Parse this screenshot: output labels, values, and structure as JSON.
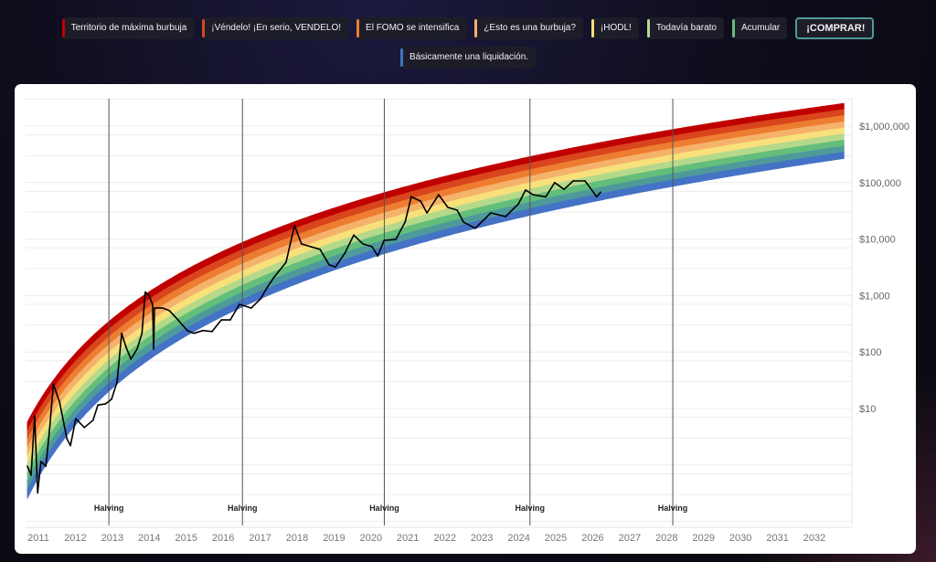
{
  "legend": {
    "items": [
      {
        "label": "Territorio de máxima burbuja",
        "color": "#c00000"
      },
      {
        "label": "¡Véndelo! ¡En serio, VENDELO!",
        "color": "#d9451c"
      },
      {
        "label": "El FOMO se intensifica",
        "color": "#ed7d31"
      },
      {
        "label": "¿Esto es una burbuja?",
        "color": "#f5b26b"
      },
      {
        "label": "¡HODL!",
        "color": "#f8e07a"
      },
      {
        "label": "Todavía barato",
        "color": "#b5d98b"
      },
      {
        "label": "Acumular",
        "color": "#63be7b"
      },
      {
        "label": "¡COMPRAR!",
        "color": "#4e9a9a",
        "active": true
      },
      {
        "label": "Básicamente una liquidación.",
        "color": "#4472c4"
      }
    ]
  },
  "chart_data": {
    "type": "line",
    "title": "",
    "xlabel": "",
    "ylabel": "",
    "y_scale": "log",
    "grid": true,
    "legend_placement": "top",
    "xlim": [
      "2010-09",
      "2032-10"
    ],
    "ylim": [
      0.08,
      2500000
    ],
    "x_ticks": [
      "2011",
      "2012",
      "2013",
      "2014",
      "2015",
      "2016",
      "2017",
      "2018",
      "2019",
      "2020",
      "2021",
      "2022",
      "2023",
      "2024",
      "2025",
      "2026",
      "2027",
      "2028",
      "2029",
      "2030",
      "2031",
      "2032"
    ],
    "y_ticks": [
      {
        "value": 10,
        "label": "$10"
      },
      {
        "value": 100,
        "label": "$100"
      },
      {
        "value": 1000,
        "label": "$1,000"
      },
      {
        "value": 10000,
        "label": "$10,000"
      },
      {
        "value": 100000,
        "label": "$100,000"
      },
      {
        "value": 1000000,
        "label": "$1,000,000"
      }
    ],
    "halvings": [
      {
        "date": "2012-11-28",
        "label": "Halving"
      },
      {
        "date": "2016-07-09",
        "label": "Halving"
      },
      {
        "date": "2020-05-11",
        "label": "Halving"
      },
      {
        "date": "2024-04-20",
        "label": "Halving"
      },
      {
        "date": "2028-03-01",
        "label": "Halving"
      }
    ],
    "rainbow": {
      "bands_top_to_bottom": [
        "#c00000",
        "#d9451c",
        "#ed7d31",
        "#f5b26b",
        "#f8e07a",
        "#b5d98b",
        "#63be7b",
        "#4e9a9a",
        "#4472c4"
      ],
      "model": "log10(price) = a + b * ln(days since 2009-01-03)",
      "upper": {
        "a": -12.97,
        "b": 2.136
      },
      "lower": {
        "a": -15.25,
        "b": 2.28
      },
      "range": [
        "2010-09-13",
        "2032-10-20"
      ]
    },
    "series": [
      {
        "color": "#000000",
        "points": [
          [
            "2010-09-13",
            0.95
          ],
          [
            "2010-10-20",
            0.66
          ],
          [
            "2010-11-25",
            7.4
          ],
          [
            "2010-12-24",
            0.32
          ],
          [
            "2011-01-26",
            1.15
          ],
          [
            "2011-03-14",
            0.95
          ],
          [
            "2011-04-20",
            4.2
          ],
          [
            "2011-05-27",
            27
          ],
          [
            "2011-07-28",
            13
          ],
          [
            "2011-10-09",
            2.9
          ],
          [
            "2011-11-14",
            2.2
          ],
          [
            "2012-01-05",
            6.6
          ],
          [
            "2012-03-29",
            4.6
          ],
          [
            "2012-06-24",
            6.2
          ],
          [
            "2012-08-11",
            11.5
          ],
          [
            "2012-10-23",
            12
          ],
          [
            "2012-12-24",
            14.5
          ],
          [
            "2013-02-18",
            29.5
          ],
          [
            "2013-04-02",
            214
          ],
          [
            "2013-05-16",
            121
          ],
          [
            "2013-07-02",
            75
          ],
          [
            "2013-09-03",
            113
          ],
          [
            "2013-10-20",
            214
          ],
          [
            "2013-11-22",
            1150
          ],
          [
            "2013-12-28",
            1020
          ],
          [
            "2014-02-03",
            700
          ],
          [
            "2014-02-14",
            113
          ],
          [
            "2014-02-22",
            600
          ],
          [
            "2014-05-12",
            600
          ],
          [
            "2014-07-17",
            540
          ],
          [
            "2014-10-12",
            370
          ],
          [
            "2015-01-12",
            240
          ],
          [
            "2015-03-15",
            214
          ],
          [
            "2015-06-14",
            240
          ],
          [
            "2015-09-13",
            230
          ],
          [
            "2015-12-13",
            370
          ],
          [
            "2016-03-10",
            370
          ],
          [
            "2016-06-10",
            700
          ],
          [
            "2016-10-05",
            600
          ],
          [
            "2017-01-05",
            870
          ],
          [
            "2017-03-08",
            1380
          ],
          [
            "2017-05-19",
            2140
          ],
          [
            "2017-09-13",
            3870
          ],
          [
            "2017-12-06",
            17400
          ],
          [
            "2018-02-14",
            8200
          ],
          [
            "2018-05-16",
            7300
          ],
          [
            "2018-08-15",
            6600
          ],
          [
            "2018-11-14",
            3500
          ],
          [
            "2019-01-15",
            3200
          ],
          [
            "2019-04-16",
            5600
          ],
          [
            "2019-07-13",
            11800
          ],
          [
            "2019-10-12",
            8200
          ],
          [
            "2020-01-12",
            7300
          ],
          [
            "2020-03-07",
            5000
          ],
          [
            "2020-05-09",
            9500
          ],
          [
            "2020-09-03",
            9800
          ],
          [
            "2020-12-03",
            20000
          ],
          [
            "2021-02-03",
            56000
          ],
          [
            "2021-05-05",
            47000
          ],
          [
            "2021-07-06",
            29000
          ],
          [
            "2021-10-31",
            61000
          ],
          [
            "2022-01-30",
            36500
          ],
          [
            "2022-05-01",
            32500
          ],
          [
            "2022-07-02",
            20000
          ],
          [
            "2022-10-27",
            15500
          ],
          [
            "2023-03-29",
            29000
          ],
          [
            "2023-08-22",
            25000
          ],
          [
            "2023-12-28",
            42000
          ],
          [
            "2024-03-07",
            74000
          ],
          [
            "2024-05-19",
            61000
          ],
          [
            "2024-09-24",
            56000
          ],
          [
            "2024-12-20",
            100000
          ],
          [
            "2025-03-22",
            76000
          ],
          [
            "2025-06-21",
            107000
          ],
          [
            "2025-10-16",
            107000
          ],
          [
            "2025-12-17",
            76000
          ],
          [
            "2026-02-10",
            56000
          ],
          [
            "2026-03-18",
            68000
          ]
        ]
      }
    ]
  }
}
